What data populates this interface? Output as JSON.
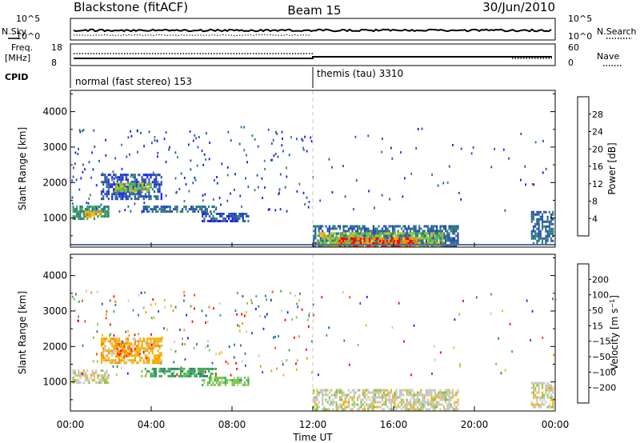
{
  "header": {
    "station": "Blackstone (fitACF)",
    "beam": "Beam 15",
    "date": "30/Jun/2010"
  },
  "top_panels": {
    "nsky_label": "N.Sky",
    "nsearch_label": "N.Search",
    "noise_tick_high": "10^5",
    "noise_tick_low": "10^0",
    "freq_label_1": "Freq.",
    "freq_label_2": "[MHz]",
    "freq_tick_high": "18",
    "freq_tick_low": "8",
    "nave_label": "Nave",
    "nave_tick_high": "60",
    "nave_tick_low": "0",
    "cpid_label": "CPID",
    "cpid_segments": [
      {
        "start_hour": 0,
        "label": "normal (fast stereo) 153"
      },
      {
        "start_hour": 12,
        "label": "themis (tau) 3310"
      }
    ]
  },
  "chart_data": [
    {
      "type": "heatmap",
      "quantity": "Power",
      "xlabel": "Time UT",
      "ylabel": "Slant Range [km]",
      "colorbar_label": "Power [dB]",
      "x_range_hours": [
        0,
        24
      ],
      "ylim": [
        180,
        4600
      ],
      "y_ticks": [
        1000,
        2000,
        3000,
        4000
      ],
      "x_ticks": [
        "00:00",
        "04:00",
        "08:00",
        "12:00",
        "16:00",
        "20:00",
        "00:00"
      ],
      "colorbar_ticks": [
        4,
        8,
        12,
        16,
        20,
        24,
        28
      ],
      "colorbar_range": [
        0,
        32
      ],
      "colorbar_colors": [
        "#1a1aff",
        "#2a4fb0",
        "#2e7d7a",
        "#3aa860",
        "#7ac943",
        "#f5b400",
        "#ff8c00",
        "#ff0000"
      ],
      "regions": [
        {
          "t0": 0.1,
          "t1": 1.9,
          "r0": 950,
          "r1": 1350,
          "value": 12
        },
        {
          "t0": 0.7,
          "t1": 1.6,
          "r0": 1000,
          "r1": 1200,
          "value": 22
        },
        {
          "t0": 1.5,
          "t1": 4.5,
          "r0": 1550,
          "r1": 2250,
          "value": 6
        },
        {
          "t0": 2.2,
          "t1": 4.0,
          "r0": 1750,
          "r1": 2000,
          "value": 18
        },
        {
          "t0": 3.5,
          "t1": 7.2,
          "r0": 1150,
          "r1": 1350,
          "value": 8
        },
        {
          "t0": 6.5,
          "t1": 8.8,
          "r0": 900,
          "r1": 1150,
          "value": 6
        },
        {
          "t0": 12.0,
          "t1": 19.2,
          "r0": 200,
          "r1": 800,
          "value": 8
        },
        {
          "t0": 12.2,
          "t1": 18.4,
          "r0": 250,
          "r1": 600,
          "value": 18
        },
        {
          "t0": 13.2,
          "t1": 17.2,
          "r0": 240,
          "r1": 450,
          "value": 28
        },
        {
          "t0": 22.8,
          "t1": 23.9,
          "r0": 300,
          "r1": 1200,
          "value": 8
        }
      ]
    },
    {
      "type": "heatmap",
      "quantity": "Velocity",
      "xlabel": "Time UT",
      "ylabel": "Slant Range [km]",
      "colorbar_label": "Velocity [m s^-1]",
      "x_range_hours": [
        0,
        24
      ],
      "ylim": [
        180,
        4600
      ],
      "y_ticks": [
        1000,
        2000,
        3000,
        4000
      ],
      "x_ticks": [
        "00:00",
        "04:00",
        "08:00",
        "12:00",
        "16:00",
        "20:00",
        "00:00"
      ],
      "colorbar_ticks": [
        "200",
        "100",
        "50",
        "15",
        "−15",
        "−50",
        "−100",
        "−200"
      ],
      "colorbar_colors": [
        "#1a1aff",
        "#2a4fb0",
        "#2e7d7a",
        "#3aa860",
        "#7ac943",
        "#c8c8c0",
        "#f5b400",
        "#ff8c00",
        "#ff4000",
        "#ff0000"
      ],
      "regions": [
        {
          "t0": 0.1,
          "t1": 1.9,
          "r0": 950,
          "r1": 1350,
          "value": 5
        },
        {
          "t0": 1.5,
          "t1": 4.5,
          "r0": 1550,
          "r1": 2250,
          "value": 6
        },
        {
          "t0": 2.2,
          "t1": 3.2,
          "r0": 1700,
          "r1": 2100,
          "value": 7
        },
        {
          "t0": 3.5,
          "t1": 7.2,
          "r0": 1150,
          "r1": 1400,
          "value": 3
        },
        {
          "t0": 6.5,
          "t1": 8.8,
          "r0": 900,
          "r1": 1150,
          "value": 4
        },
        {
          "t0": 12.0,
          "t1": 19.2,
          "r0": 200,
          "r1": 800,
          "value": 5
        },
        {
          "t0": 22.8,
          "t1": 23.9,
          "r0": 300,
          "r1": 1000,
          "value": 5
        }
      ]
    }
  ]
}
